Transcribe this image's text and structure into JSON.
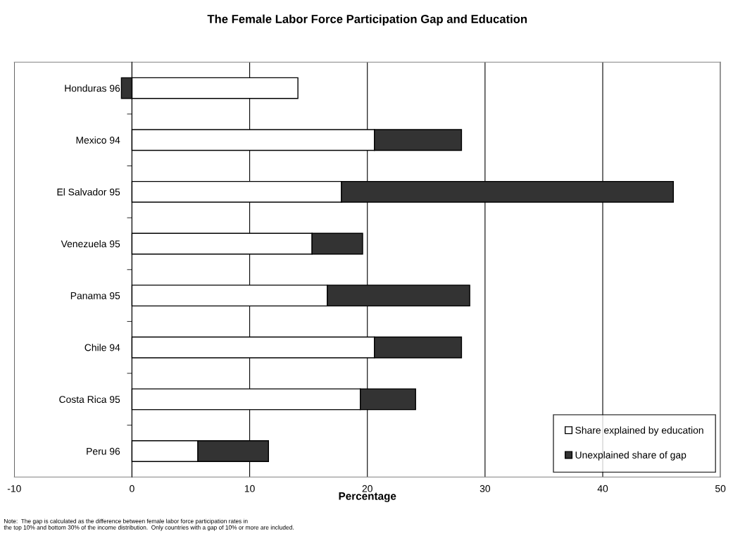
{
  "chart_data": {
    "type": "bar",
    "orientation": "horizontal",
    "stacked": true,
    "title": "The Female Labor Force Participation Gap and Education",
    "xlabel": "Percentage",
    "categories": [
      "Honduras 96",
      "Mexico 94",
      "El Salvador 95",
      "Venezuela 95",
      "Panama 95",
      "Chile 94",
      "Costa Rica 95",
      "Peru 96"
    ],
    "series": [
      {
        "name": "Share explained by education",
        "color": "#ffffff",
        "values": [
          14.1,
          20.6,
          17.8,
          15.3,
          16.6,
          20.6,
          19.4,
          5.6
        ]
      },
      {
        "name": "Unexplained share of gap",
        "color": "#333333",
        "values": [
          -0.9,
          7.4,
          28.2,
          4.3,
          12.1,
          7.4,
          4.7,
          6.0
        ]
      }
    ],
    "xlim": [
      -10,
      50
    ],
    "xticks": [
      -10,
      0,
      10,
      20,
      30,
      40,
      50
    ],
    "grid": "x",
    "legend": "bottom right",
    "annotations": [
      "Note:  The gap is calculated as the difference between female labor force participation rates in\nthe top 10% and bottom 30% of the income distribution.  Only countries with a gap of 10% or more are included."
    ]
  }
}
